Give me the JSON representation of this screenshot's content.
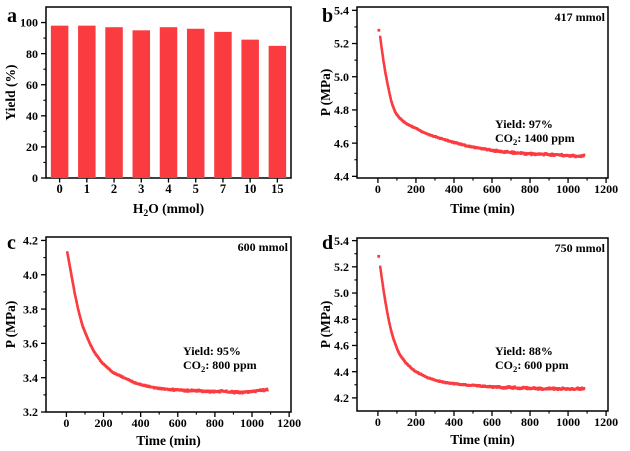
{
  "figure": {
    "background": "#ffffff",
    "accent_red": "#fa3c40",
    "axis_color": "#000000"
  },
  "chart_data": [
    {
      "id": "a",
      "panel_label": "a",
      "type": "bar",
      "xlabel_parts": [
        {
          "text": "H"
        },
        {
          "text": "2",
          "sub": true
        },
        {
          "text": "O (mmol)"
        }
      ],
      "ylabel": "Yield (%)",
      "categories": [
        "0",
        "1",
        "2",
        "3",
        "4",
        "5",
        "7",
        "10",
        "15"
      ],
      "values": [
        98,
        98,
        97,
        95,
        97,
        96,
        94,
        89,
        85
      ],
      "ylim": [
        0,
        110
      ],
      "yticks": [
        "0",
        "20",
        "40",
        "60",
        "80",
        "100"
      ],
      "yticks_minor": [
        10,
        30,
        50,
        70,
        90
      ],
      "bar_color": "#fa3c40"
    },
    {
      "id": "b",
      "panel_label": "b",
      "type": "scatter",
      "corner_label": "417 mmol",
      "annotation_lines": [
        [
          {
            "text": "Yield: 97%"
          }
        ],
        [
          {
            "text": "CO"
          },
          {
            "text": "2",
            "sub": true
          },
          {
            "text": ": 1400 ppm"
          }
        ]
      ],
      "xlabel": "Time (min)",
      "ylabel": "P (MPa)",
      "xlim": [
        -110,
        1210
      ],
      "ylim": [
        4.39,
        5.42
      ],
      "xticks": [
        "0",
        "200",
        "400",
        "600",
        "800",
        "1000",
        "1200"
      ],
      "xticks_minor": [
        100,
        300,
        500,
        700,
        900,
        1100
      ],
      "yticks": [
        "4.4",
        "4.6",
        "4.8",
        "5.0",
        "5.2",
        "5.4"
      ],
      "yticks_minor": [
        4.5,
        4.7,
        4.9,
        5.1,
        5.3
      ],
      "start_dot": [
        5,
        5.28
      ],
      "curve": [
        [
          12,
          5.24
        ],
        [
          20,
          5.17
        ],
        [
          30,
          5.09
        ],
        [
          40,
          5.02
        ],
        [
          50,
          4.96
        ],
        [
          60,
          4.905
        ],
        [
          70,
          4.855
        ],
        [
          80,
          4.82
        ],
        [
          90,
          4.79
        ],
        [
          100,
          4.77
        ],
        [
          120,
          4.745
        ],
        [
          140,
          4.725
        ],
        [
          160,
          4.71
        ],
        [
          180,
          4.7
        ],
        [
          200,
          4.69
        ],
        [
          230,
          4.67
        ],
        [
          260,
          4.655
        ],
        [
          300,
          4.64
        ],
        [
          340,
          4.625
        ],
        [
          380,
          4.61
        ],
        [
          420,
          4.598
        ],
        [
          460,
          4.586
        ],
        [
          500,
          4.576
        ],
        [
          550,
          4.565
        ],
        [
          600,
          4.556
        ],
        [
          650,
          4.549
        ],
        [
          700,
          4.544
        ],
        [
          750,
          4.539
        ],
        [
          800,
          4.535
        ],
        [
          850,
          4.534
        ],
        [
          900,
          4.531
        ],
        [
          950,
          4.529
        ],
        [
          1000,
          4.525
        ],
        [
          1040,
          4.522
        ],
        [
          1085,
          4.524
        ]
      ],
      "curve_color": "#fa3c40"
    },
    {
      "id": "c",
      "panel_label": "c",
      "type": "scatter",
      "corner_label": "600 mmol",
      "annotation_lines": [
        [
          {
            "text": "Yield: 95%"
          }
        ],
        [
          {
            "text": "CO"
          },
          {
            "text": "2",
            "sub": true
          },
          {
            "text": ": 800 ppm"
          }
        ]
      ],
      "xlabel": "Time (min)",
      "ylabel": "P (MPa)",
      "xlim": [
        -110,
        1210
      ],
      "ylim": [
        3.2,
        4.22
      ],
      "xticks": [
        "0",
        "200",
        "400",
        "600",
        "800",
        "1000",
        "1200"
      ],
      "xticks_minor": [
        100,
        300,
        500,
        700,
        900,
        1100
      ],
      "yticks": [
        "3.2",
        "3.4",
        "3.6",
        "3.8",
        "4.0",
        "4.2"
      ],
      "yticks_minor": [
        3.3,
        3.5,
        3.7,
        3.9,
        4.1
      ],
      "start_dot": null,
      "curve": [
        [
          5,
          4.13
        ],
        [
          15,
          4.07
        ],
        [
          25,
          4.01
        ],
        [
          35,
          3.95
        ],
        [
          45,
          3.89
        ],
        [
          55,
          3.84
        ],
        [
          65,
          3.79
        ],
        [
          75,
          3.75
        ],
        [
          85,
          3.71
        ],
        [
          95,
          3.68
        ],
        [
          110,
          3.64
        ],
        [
          130,
          3.59
        ],
        [
          150,
          3.55
        ],
        [
          170,
          3.52
        ],
        [
          190,
          3.49
        ],
        [
          210,
          3.47
        ],
        [
          230,
          3.45
        ],
        [
          250,
          3.43
        ],
        [
          270,
          3.42
        ],
        [
          290,
          3.41
        ],
        [
          310,
          3.4
        ],
        [
          340,
          3.385
        ],
        [
          370,
          3.37
        ],
        [
          400,
          3.36
        ],
        [
          440,
          3.35
        ],
        [
          480,
          3.34
        ],
        [
          520,
          3.335
        ],
        [
          560,
          3.33
        ],
        [
          600,
          3.33
        ],
        [
          650,
          3.325
        ],
        [
          700,
          3.325
        ],
        [
          750,
          3.32
        ],
        [
          800,
          3.32
        ],
        [
          850,
          3.32
        ],
        [
          900,
          3.315
        ],
        [
          950,
          3.315
        ],
        [
          1000,
          3.32
        ],
        [
          1040,
          3.325
        ],
        [
          1085,
          3.33
        ]
      ],
      "curve_color": "#fa3c40"
    },
    {
      "id": "d",
      "panel_label": "d",
      "type": "scatter",
      "corner_label": "750 mmol",
      "annotation_lines": [
        [
          {
            "text": "Yield: 88%"
          }
        ],
        [
          {
            "text": "CO"
          },
          {
            "text": "2",
            "sub": true
          },
          {
            "text": ": 600 ppm"
          }
        ]
      ],
      "xlabel": "Time (min)",
      "ylabel": "P (MPa)",
      "xlim": [
        -110,
        1210
      ],
      "ylim": [
        4.1,
        5.42
      ],
      "xticks": [
        "0",
        "200",
        "400",
        "600",
        "800",
        "1000",
        "1200"
      ],
      "xticks_minor": [
        100,
        300,
        500,
        700,
        900,
        1100
      ],
      "yticks": [
        "4.2",
        "4.4",
        "4.6",
        "4.8",
        "5.0",
        "5.2",
        "5.4"
      ],
      "yticks_minor": [
        4.3,
        4.5,
        4.7,
        4.9,
        5.1,
        5.3
      ],
      "start_dot": [
        4,
        5.28
      ],
      "curve": [
        [
          12,
          5.2
        ],
        [
          22,
          5.1
        ],
        [
          32,
          5.0
        ],
        [
          42,
          4.91
        ],
        [
          52,
          4.83
        ],
        [
          62,
          4.76
        ],
        [
          72,
          4.7
        ],
        [
          82,
          4.65
        ],
        [
          92,
          4.61
        ],
        [
          102,
          4.57
        ],
        [
          115,
          4.53
        ],
        [
          130,
          4.5
        ],
        [
          145,
          4.47
        ],
        [
          160,
          4.45
        ],
        [
          180,
          4.42
        ],
        [
          200,
          4.4
        ],
        [
          220,
          4.385
        ],
        [
          240,
          4.37
        ],
        [
          260,
          4.355
        ],
        [
          280,
          4.345
        ],
        [
          300,
          4.335
        ],
        [
          330,
          4.325
        ],
        [
          360,
          4.315
        ],
        [
          390,
          4.31
        ],
        [
          420,
          4.305
        ],
        [
          460,
          4.3
        ],
        [
          500,
          4.295
        ],
        [
          550,
          4.29
        ],
        [
          600,
          4.285
        ],
        [
          650,
          4.28
        ],
        [
          700,
          4.28
        ],
        [
          750,
          4.275
        ],
        [
          800,
          4.275
        ],
        [
          850,
          4.27
        ],
        [
          900,
          4.27
        ],
        [
          950,
          4.27
        ],
        [
          1000,
          4.27
        ],
        [
          1040,
          4.27
        ],
        [
          1085,
          4.27
        ]
      ],
      "curve_color": "#fa3c40"
    }
  ]
}
